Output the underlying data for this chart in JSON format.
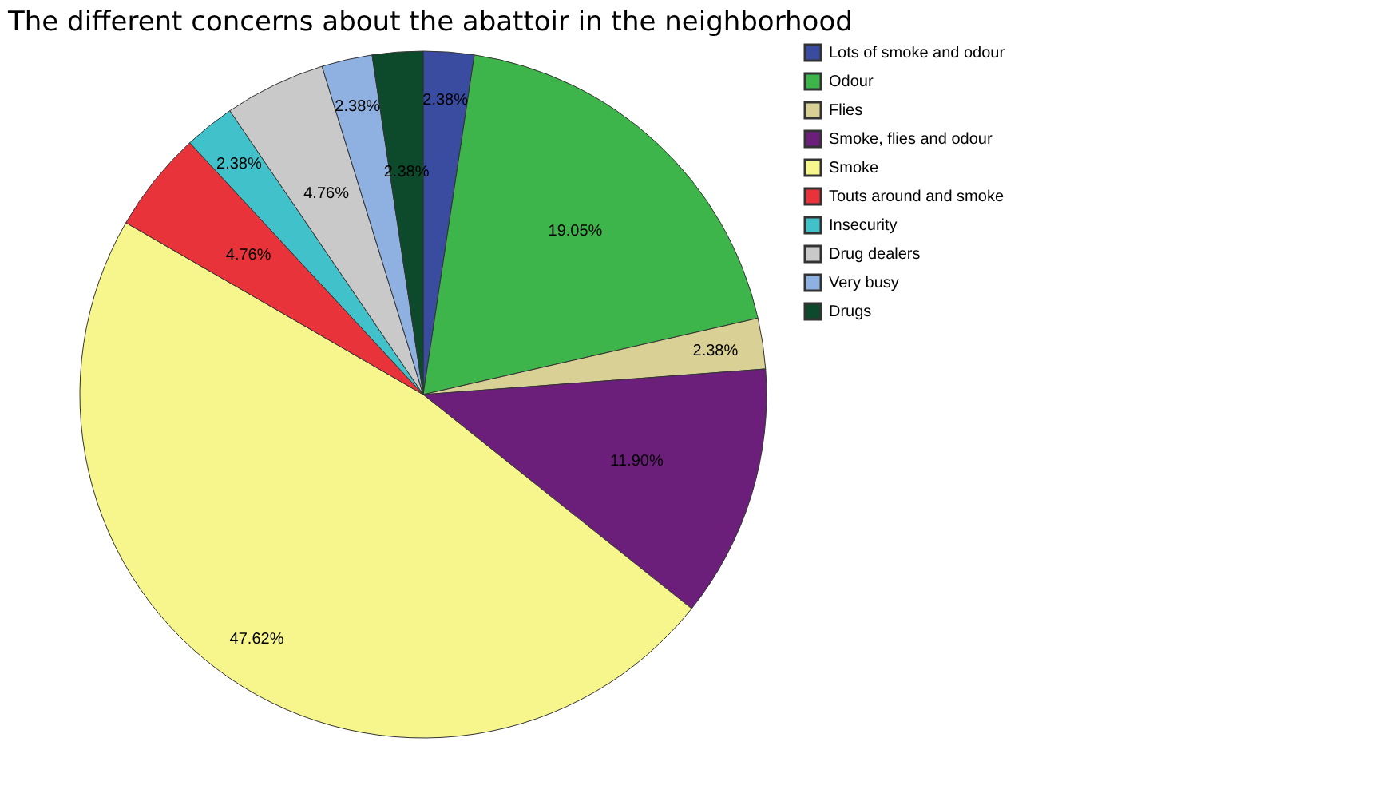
{
  "chart_data": {
    "type": "pie",
    "title": "The different  concerns about the abattoir in the neighborhood",
    "categories": [
      "Lots of smoke and odour",
      "Odour",
      "Flies",
      "Smoke, flies and odour",
      "Smoke",
      "Touts around and smoke",
      "Insecurity",
      "Drug dealers",
      "Very busy",
      "Drugs"
    ],
    "values": [
      2.38,
      19.05,
      2.38,
      11.9,
      47.62,
      4.76,
      2.38,
      4.76,
      2.38,
      2.38
    ],
    "value_labels": [
      "2.38%",
      "19.05%",
      "2.38%",
      "11.90%",
      "47.62%",
      "4.76%",
      "2.38%",
      "4.76%",
      "2.38%",
      "2.38%"
    ],
    "colors": [
      "#3a4ca0",
      "#3db54a",
      "#d9d096",
      "#6b1f7b",
      "#f7f68c",
      "#e8333b",
      "#41c1c9",
      "#c9c9c9",
      "#8fb1e1",
      "#0c4a2b"
    ],
    "legend": "top right"
  }
}
